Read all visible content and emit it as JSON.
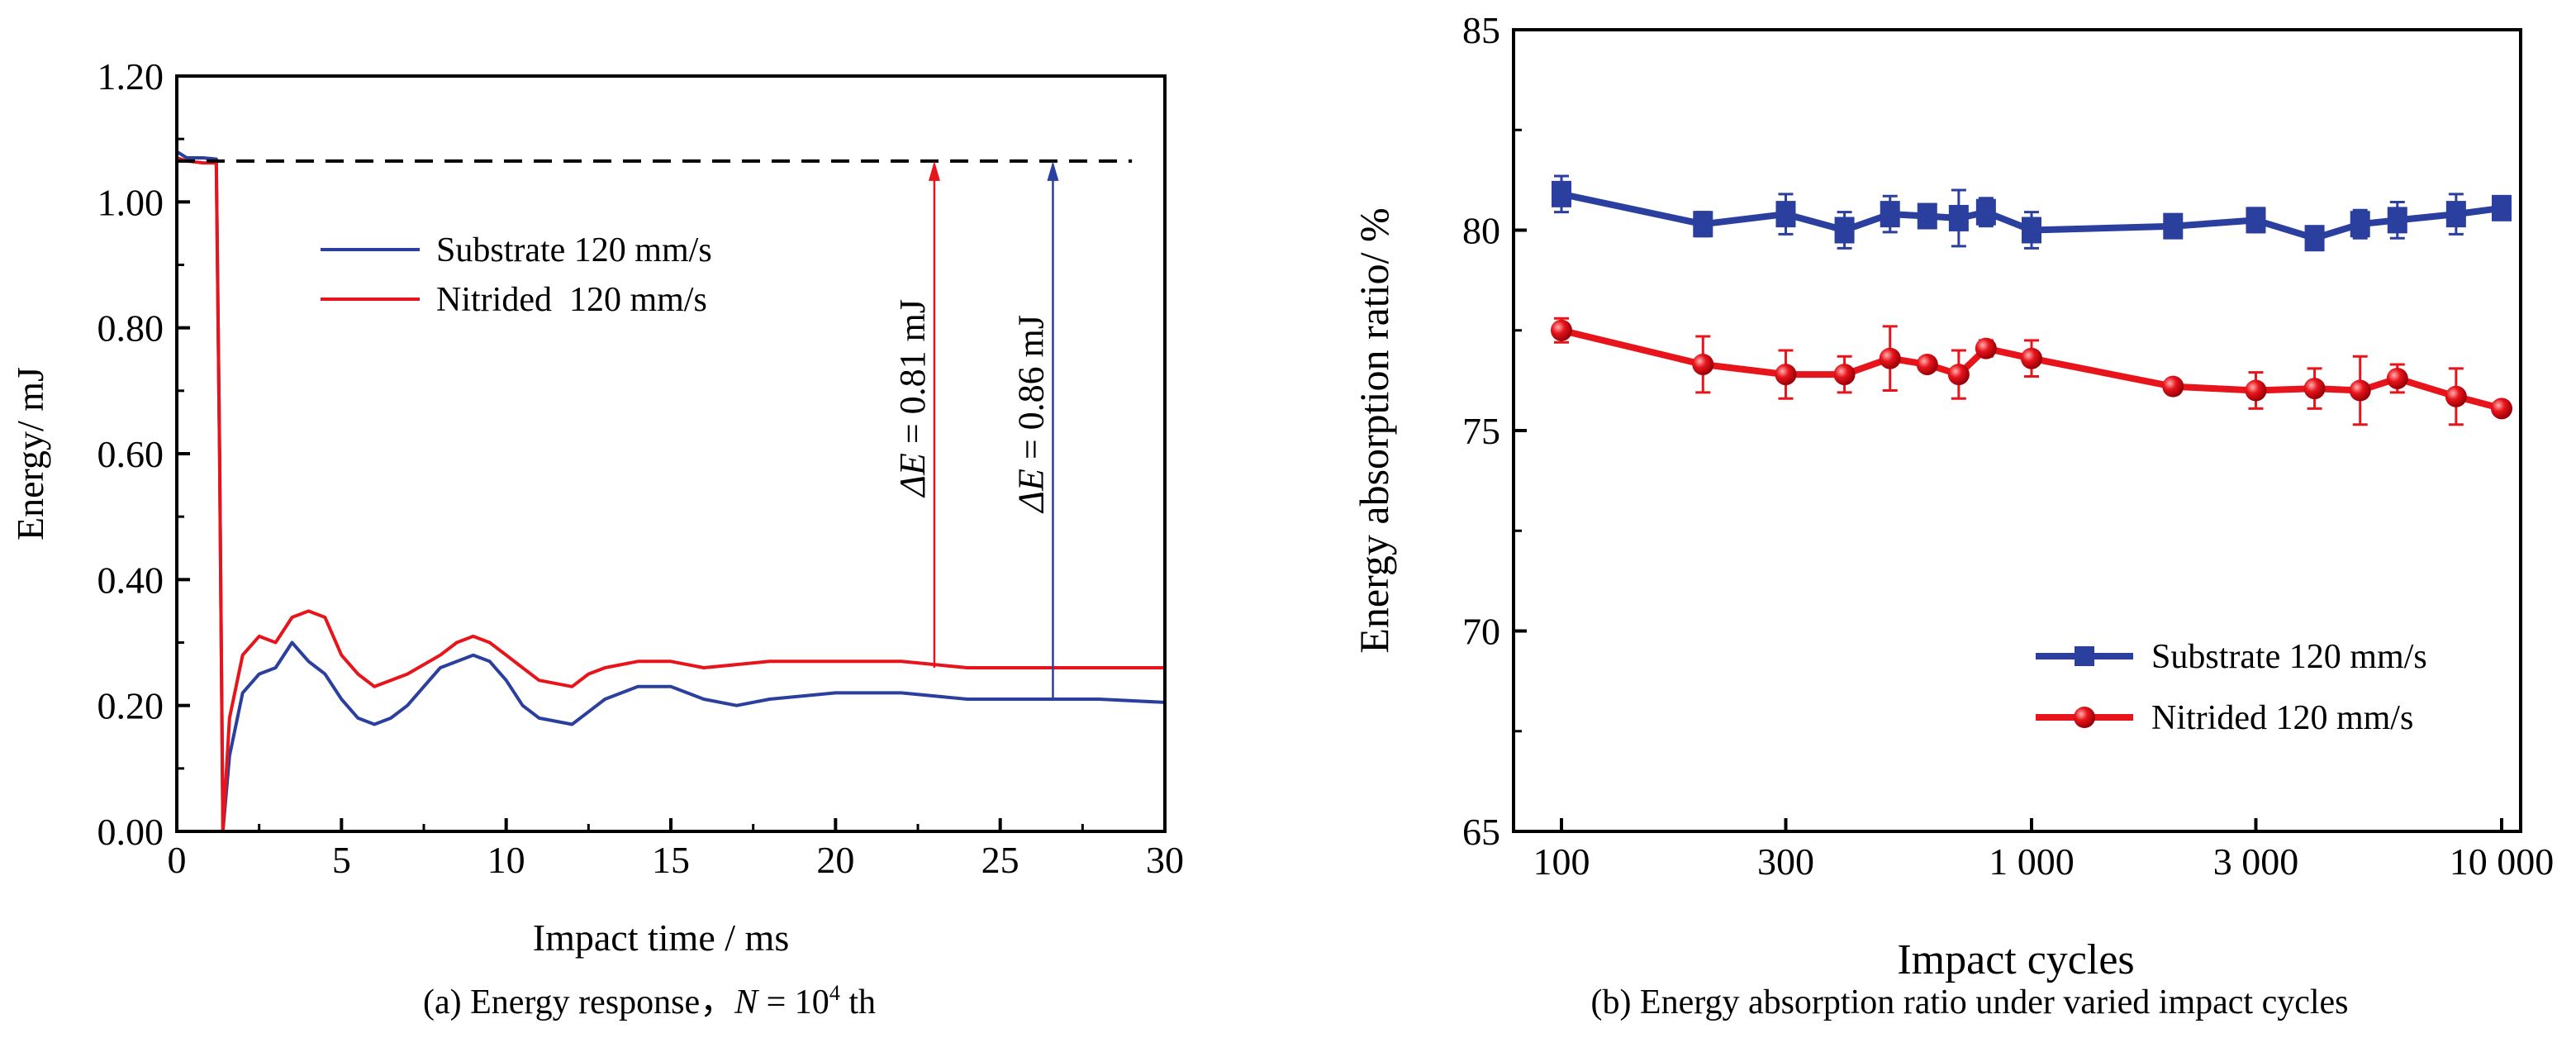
{
  "colors": {
    "substrate": "#2b3f9e",
    "nitrided": "#e8141b",
    "axis": "#000000"
  },
  "chart_data": [
    {
      "type": "line",
      "caption": "(a) Energy response，N = 10⁴ th",
      "caption_parts": {
        "prefix": "(a) Energy response，",
        "var": "N",
        "eq": " = 10",
        "sup": "4",
        "suffix": " th"
      },
      "xlabel": "Impact time / ms",
      "ylabel": "Energy/ mJ",
      "xlim": [
        0,
        30
      ],
      "ylim": [
        0,
        1.2
      ],
      "xticks": [
        "0",
        "5",
        "10",
        "15",
        "20",
        "25",
        "30"
      ],
      "yticks": [
        "0.00",
        "0.20",
        "0.40",
        "0.60",
        "0.80",
        "1.00",
        "1.20"
      ],
      "legend_position": "upper-center",
      "series": [
        {
          "name": "Substrate 120 mm/s",
          "color": "#2b3f9e",
          "x": [
            0,
            0.3,
            0.8,
            1.2,
            1.3,
            1.4,
            1.6,
            2,
            2.5,
            3,
            3.5,
            4,
            4.5,
            5,
            5.5,
            6,
            6.5,
            7,
            7.5,
            8,
            9,
            9.5,
            10,
            10.5,
            11,
            12,
            12.5,
            13,
            14,
            15,
            16,
            17,
            18,
            20,
            22,
            24,
            26,
            28,
            30
          ],
          "y": [
            1.08,
            1.07,
            1.07,
            1.068,
            0.6,
            0.0,
            0.12,
            0.22,
            0.25,
            0.26,
            0.3,
            0.27,
            0.25,
            0.21,
            0.18,
            0.17,
            0.18,
            0.2,
            0.23,
            0.26,
            0.28,
            0.27,
            0.24,
            0.2,
            0.18,
            0.17,
            0.19,
            0.21,
            0.23,
            0.23,
            0.21,
            0.2,
            0.21,
            0.22,
            0.22,
            0.21,
            0.21,
            0.21,
            0.205
          ]
        },
        {
          "name": "Nitrided  120 mm/s",
          "color": "#e8141b",
          "x": [
            0,
            0.3,
            0.8,
            1.2,
            1.3,
            1.4,
            1.6,
            2,
            2.5,
            3,
            3.5,
            4,
            4.5,
            5,
            5.5,
            6,
            7,
            8,
            8.5,
            9,
            9.5,
            10,
            10.5,
            11,
            12,
            12.5,
            13,
            14,
            15,
            16,
            18,
            20,
            22,
            24,
            26,
            28,
            30
          ],
          "y": [
            1.07,
            1.065,
            1.062,
            1.062,
            0.6,
            0.0,
            0.18,
            0.28,
            0.31,
            0.3,
            0.34,
            0.35,
            0.34,
            0.28,
            0.25,
            0.23,
            0.25,
            0.28,
            0.3,
            0.31,
            0.3,
            0.28,
            0.26,
            0.24,
            0.23,
            0.25,
            0.26,
            0.27,
            0.27,
            0.26,
            0.27,
            0.27,
            0.27,
            0.26,
            0.26,
            0.26,
            0.26
          ]
        }
      ],
      "reference_line": {
        "y": 1.065,
        "x": [
          0,
          29
        ],
        "style": "dashed"
      },
      "annotations": [
        {
          "label_prefix": "ΔE",
          "label": " = 0.81 mJ",
          "x": 23,
          "y_from": 0.26,
          "y_to": 1.065,
          "color": "#e8141b"
        },
        {
          "label_prefix": "ΔE",
          "label": " = 0.86 mJ",
          "x": 26.6,
          "y_from": 0.21,
          "y_to": 1.065,
          "color": "#2b3f9e"
        }
      ]
    },
    {
      "type": "line",
      "caption": "(b) Energy absorption ratio under varied impact cycles",
      "xlabel": "Impact cycles",
      "ylabel": "Energy absorption ratio/ %",
      "xscale": "log",
      "xlim": [
        100,
        10000
      ],
      "ylim": [
        65,
        85
      ],
      "xticks": [
        {
          "v": 100,
          "label": "100"
        },
        {
          "v": 300,
          "label": "300"
        },
        {
          "v": 1000,
          "label": "1 000"
        },
        {
          "v": 3000,
          "label": "3 000"
        },
        {
          "v": 10000,
          "label": "10 000"
        }
      ],
      "yticks": [
        "65",
        "70",
        "75",
        "80",
        "85"
      ],
      "legend_position": "lower-right",
      "x": [
        100,
        200,
        300,
        400,
        500,
        600,
        700,
        800,
        1000,
        2000,
        3000,
        4000,
        5000,
        6000,
        8000,
        10000
      ],
      "series": [
        {
          "name": "Substrate 120 mm/s",
          "color": "#2b3f9e",
          "marker": "square",
          "y": [
            80.9,
            80.15,
            80.4,
            80.0,
            80.4,
            80.35,
            80.3,
            80.45,
            80.0,
            80.1,
            80.25,
            79.8,
            80.15,
            80.25,
            80.4,
            80.55
          ],
          "err": [
            0.45,
            0.3,
            0.5,
            0.45,
            0.45,
            0.15,
            0.7,
            0.35,
            0.45,
            0.15,
            0.3,
            0.1,
            0.35,
            0.45,
            0.5,
            0.15
          ]
        },
        {
          "name": "Nitrided 120 mm/s",
          "color": "#e8141b",
          "marker": "sphere",
          "y": [
            77.5,
            76.65,
            76.4,
            76.4,
            76.8,
            76.65,
            76.4,
            77.05,
            76.8,
            76.1,
            76.0,
            76.05,
            76.0,
            76.3,
            75.85,
            75.55
          ],
          "err": [
            0.3,
            0.7,
            0.6,
            0.45,
            0.8,
            0.15,
            0.6,
            0.2,
            0.45,
            0.1,
            0.45,
            0.5,
            0.85,
            0.35,
            0.7,
            0.1
          ]
        }
      ]
    }
  ]
}
